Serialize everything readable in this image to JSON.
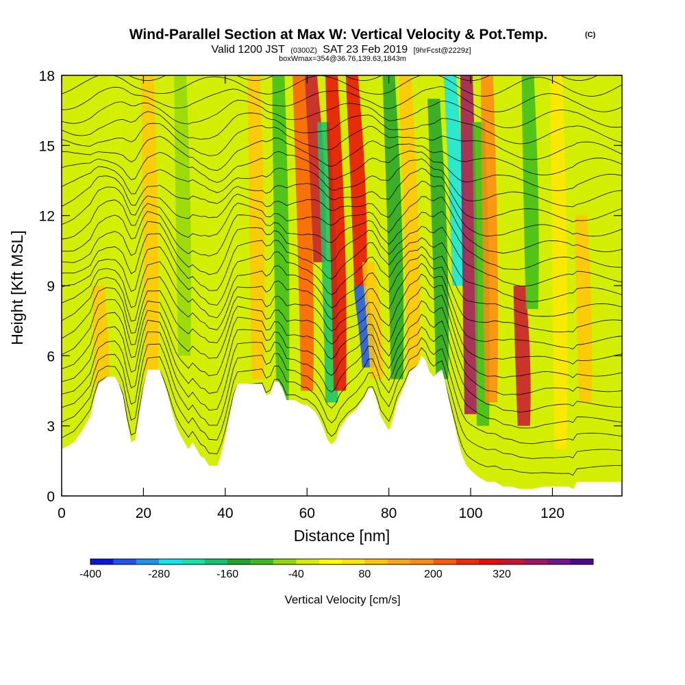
{
  "header": {
    "title": "Wind-Parallel Section at Max W: Vertical Velocity & Pot.Temp.",
    "copyright": "(C)",
    "sub_valid": "Valid 1200 JST",
    "sub_utc": "(0300Z)",
    "sub_date": "SAT 23 Feb 2019",
    "sub_fcst": "[9hrFcst@2229z]",
    "sub_box": "boxWmax=354@36.76,139.63,1843m"
  },
  "colors": {
    "background_field": "#d4ee00",
    "terrain": "#ffffff",
    "contour": "#000000"
  },
  "chart_data": {
    "type": "heatmap",
    "xlabel": "Distance [nm]",
    "ylabel": "Height [Kft MSL]",
    "xlim": [
      0,
      137
    ],
    "ylim": [
      0,
      18
    ],
    "x_ticks": [
      0,
      20,
      40,
      60,
      80,
      100,
      120
    ],
    "x_tick_labels": [
      "0",
      "20",
      "40",
      "60",
      "80",
      "100",
      "120"
    ],
    "y_ticks": [
      0,
      3,
      6,
      9,
      12,
      15,
      18
    ],
    "y_tick_labels": [
      "0",
      "3",
      "6",
      "9",
      "12",
      "15",
      "18"
    ],
    "terrain_height_kft": [
      [
        0,
        2.0
      ],
      [
        3,
        2.3
      ],
      [
        5,
        2.8
      ],
      [
        7,
        3.4
      ],
      [
        8,
        4.2
      ],
      [
        9,
        4.8
      ],
      [
        11,
        5.1
      ],
      [
        13,
        5.1
      ],
      [
        14,
        4.8
      ],
      [
        15,
        4.3
      ],
      [
        16,
        3.2
      ],
      [
        17,
        2.3
      ],
      [
        18,
        2.4
      ],
      [
        19,
        3.6
      ],
      [
        20,
        4.7
      ],
      [
        21,
        5.4
      ],
      [
        24,
        5.4
      ],
      [
        25,
        4.9
      ],
      [
        26,
        4.3
      ],
      [
        27,
        3.6
      ],
      [
        28,
        3.0
      ],
      [
        29,
        2.6
      ],
      [
        30,
        2.3
      ],
      [
        31,
        2.0
      ],
      [
        32,
        2.3
      ],
      [
        33,
        2.0
      ],
      [
        34,
        1.7
      ],
      [
        35,
        1.6
      ],
      [
        36,
        1.3
      ],
      [
        38,
        1.3
      ],
      [
        39,
        1.8
      ],
      [
        40,
        2.5
      ],
      [
        41,
        3.4
      ],
      [
        42,
        4.3
      ],
      [
        43,
        4.8
      ],
      [
        49,
        4.8
      ],
      [
        50,
        4.3
      ],
      [
        51,
        4.4
      ],
      [
        52,
        4.9
      ],
      [
        53,
        4.9
      ],
      [
        54,
        4.6
      ],
      [
        55,
        4.1
      ],
      [
        57,
        4.1
      ],
      [
        59,
        3.9
      ],
      [
        60,
        3.9
      ],
      [
        62,
        3.6
      ],
      [
        63,
        3.3
      ],
      [
        64,
        2.9
      ],
      [
        65,
        2.4
      ],
      [
        66,
        2.2
      ],
      [
        67,
        2.4
      ],
      [
        68,
        2.9
      ],
      [
        70,
        3.4
      ],
      [
        72,
        3.7
      ],
      [
        74,
        4.2
      ],
      [
        75,
        4.6
      ],
      [
        76,
        4.6
      ],
      [
        77,
        4.1
      ],
      [
        78,
        3.4
      ],
      [
        79,
        3.1
      ],
      [
        80,
        2.8
      ],
      [
        81,
        3.3
      ],
      [
        82,
        4.0
      ],
      [
        84,
        4.8
      ],
      [
        85,
        5.3
      ],
      [
        87,
        5.6
      ],
      [
        88,
        6.0
      ],
      [
        89,
        5.8
      ],
      [
        90,
        5.3
      ],
      [
        91,
        5.1
      ],
      [
        92,
        5.3
      ],
      [
        93,
        5.4
      ],
      [
        94,
        4.7
      ],
      [
        95,
        3.9
      ],
      [
        96,
        3.1
      ],
      [
        97,
        2.3
      ],
      [
        98,
        1.7
      ],
      [
        99,
        1.3
      ],
      [
        100,
        1.1
      ],
      [
        102,
        0.8
      ],
      [
        104,
        0.6
      ],
      [
        106,
        0.6
      ],
      [
        108,
        0.4
      ],
      [
        110,
        0.4
      ],
      [
        112,
        0.3
      ],
      [
        115,
        0.3
      ],
      [
        118,
        0.4
      ],
      [
        122,
        0.4
      ],
      [
        124,
        0.4
      ],
      [
        125,
        0.3
      ],
      [
        126,
        0.6
      ],
      [
        130,
        0.6
      ],
      [
        137,
        0.6
      ]
    ],
    "vertical_velocity_features": [
      {
        "x": 10,
        "y_from": 3.5,
        "y_to": 9,
        "w": 80
      },
      {
        "x": 22,
        "y_from": 5,
        "y_to": 18,
        "w": 80
      },
      {
        "x": 14,
        "y_from": 6,
        "y_to": 18,
        "w": -40
      },
      {
        "x": 30,
        "y_from": 6,
        "y_to": 18,
        "w": -100
      },
      {
        "x": 48,
        "y_from": 5,
        "y_to": 18,
        "w": 80
      },
      {
        "x": 54,
        "y_from": 4,
        "y_to": 18,
        "w": -120
      },
      {
        "x": 60,
        "y_from": 4.5,
        "y_to": 18,
        "w": 200
      },
      {
        "x": 63,
        "y_from": 10,
        "y_to": 18,
        "w": 300
      },
      {
        "x": 66,
        "y_from": 4,
        "y_to": 16,
        "w": -200
      },
      {
        "x": 68,
        "y_from": 4.5,
        "y_to": 18,
        "w": 280
      },
      {
        "x": 73,
        "y_from": 9,
        "y_to": 18,
        "w": 280
      },
      {
        "x": 75,
        "y_from": 5.5,
        "y_to": 9,
        "w": -380
      },
      {
        "x": 77,
        "y_from": 5,
        "y_to": 10,
        "w": 80
      },
      {
        "x": 82,
        "y_from": 5,
        "y_to": 18,
        "w": -160
      },
      {
        "x": 86,
        "y_from": 5,
        "y_to": 18,
        "w": 80
      },
      {
        "x": 93,
        "y_from": 5,
        "y_to": 17,
        "w": -180
      },
      {
        "x": 97,
        "y_from": 9,
        "y_to": 18,
        "w": -280
      },
      {
        "x": 100,
        "y_from": 3.5,
        "y_to": 18,
        "w": 350
      },
      {
        "x": 103,
        "y_from": 3,
        "y_to": 16,
        "w": -120
      },
      {
        "x": 105,
        "y_from": 4,
        "y_to": 18,
        "w": 140
      },
      {
        "x": 113,
        "y_from": 3,
        "y_to": 9,
        "w": 300
      },
      {
        "x": 115,
        "y_from": 8,
        "y_to": 18,
        "w": -140
      },
      {
        "x": 122,
        "y_from": 2,
        "y_to": 18,
        "w": 20
      },
      {
        "x": 128,
        "y_from": 4,
        "y_to": 12,
        "w": 80
      }
    ]
  },
  "colorbar": {
    "label": "Vertical Velocity [cm/s]",
    "tick_labels": [
      "-400",
      "-280",
      "-160",
      "-40",
      "80",
      "200",
      "320"
    ],
    "tick_values": [
      -400,
      -280,
      -160,
      -40,
      80,
      200,
      320
    ],
    "colors": [
      "#0a14e6",
      "#1d52f5",
      "#1e93f0",
      "#0ee6f0",
      "#10e3a6",
      "#14c46c",
      "#21a32d",
      "#3bbb1c",
      "#93d80c",
      "#d4ee00",
      "#fffc00",
      "#ffe600",
      "#ffc40a",
      "#ffa414",
      "#ff8a14",
      "#ff5a0a",
      "#f2280a",
      "#e80a0a",
      "#c81432",
      "#a01464",
      "#6e148c",
      "#4b0a8c"
    ]
  }
}
